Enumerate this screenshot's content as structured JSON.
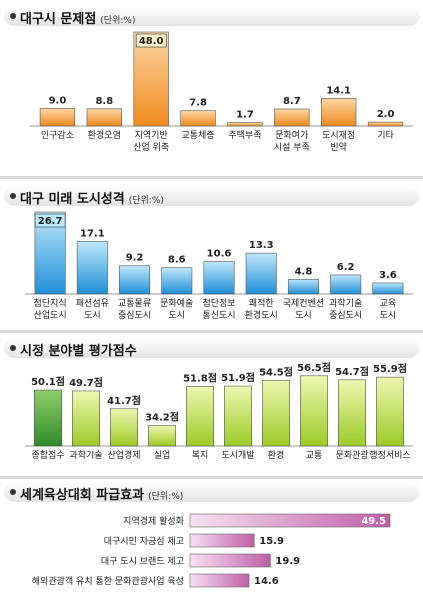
{
  "colors": {
    "orange_top": "#fdd7a6",
    "orange_bottom": "#f08a1d",
    "blue_top": "#bfe8fb",
    "blue_bottom": "#1f8ed8",
    "green_top": "#eef7b0",
    "green_bottom": "#9ccb27",
    "dgreen_top": "#8fcf6a",
    "dgreen_bottom": "#2f8a2a",
    "pink_top": "#f7e2f2",
    "pink_bottom": "#c05ea8"
  },
  "panels": [
    {
      "title": "대구시 문제점",
      "unit": "(단위:%)"
    },
    {
      "title": "대구 미래 도시성격",
      "unit": "(단위:%)"
    },
    {
      "title": "시정 분야별 평가점수",
      "unit": ""
    },
    {
      "title": "세계육상대회 파급효과",
      "unit": "(단위:%)"
    }
  ],
  "chart_data": [
    {
      "type": "bar",
      "title": "대구시 문제점",
      "unit": "(단위:%)",
      "categories": [
        [
          "인구감소"
        ],
        [
          "환경오염"
        ],
        [
          "지역기반",
          "산업 위축"
        ],
        [
          "교통체증"
        ],
        [
          "주택부족"
        ],
        [
          "문화여가",
          "시설 부족"
        ],
        [
          "도시재정",
          "빈약"
        ],
        [
          "기타"
        ]
      ],
      "values": [
        9.0,
        8.8,
        48.0,
        7.8,
        1.7,
        8.7,
        14.1,
        2.0
      ],
      "labels": [
        "9.0",
        "8.8",
        "48.0",
        "7.8",
        "1.7",
        "8.7",
        "14.1",
        "2.0"
      ],
      "highlight_index": 2,
      "color": "orange"
    },
    {
      "type": "bar",
      "title": "대구 미래 도시성격",
      "unit": "(단위:%)",
      "categories": [
        [
          "첨단지식",
          "산업도시"
        ],
        [
          "패션섬유",
          "도시"
        ],
        [
          "교통물류",
          "중심도시"
        ],
        [
          "문화예술",
          "도시"
        ],
        [
          "첨단정보",
          "통신도시"
        ],
        [
          "쾌적한",
          "환경도시"
        ],
        [
          "국제컨벤션",
          "도시"
        ],
        [
          "과학기술",
          "중심도시"
        ],
        [
          "교육",
          "도시"
        ]
      ],
      "values": [
        26.7,
        17.1,
        9.2,
        8.6,
        10.6,
        13.3,
        4.8,
        6.2,
        3.6
      ],
      "labels": [
        "26.7",
        "17.1",
        "9.2",
        "8.6",
        "10.6",
        "13.3",
        "4.8",
        "6.2",
        "3.6"
      ],
      "highlight_index": 0,
      "color": "blue"
    },
    {
      "type": "bar",
      "title": "시정 분야별 평가점수",
      "categories": [
        [
          "종합점수"
        ],
        [
          "과학기술"
        ],
        [
          "산업경제"
        ],
        [
          "실업"
        ],
        [
          "복지"
        ],
        [
          "도시개발"
        ],
        [
          "환경"
        ],
        [
          "교통"
        ],
        [
          "문화관광"
        ],
        [
          "행정서비스"
        ]
      ],
      "values": [
        50.1,
        49.7,
        41.7,
        34.2,
        51.8,
        51.9,
        54.5,
        56.5,
        54.7,
        55.9
      ],
      "labels": [
        "50.1점",
        "49.7점",
        "41.7점",
        "34.2점",
        "51.8점",
        "51.9점",
        "54.5점",
        "56.5점",
        "54.7점",
        "55.9점"
      ],
      "ylim": [
        25,
        60
      ],
      "highlight_index": 0,
      "color": "green"
    },
    {
      "type": "bar",
      "orientation": "horizontal",
      "title": "세계육상대회 파급효과",
      "unit": "(단위:%)",
      "categories": [
        "지역경제 활성화",
        "대구시민 자긍심 제고",
        "대구 도시 브랜드 제고",
        "해외관광객 유치 통한 문화관광사업 육성"
      ],
      "values": [
        49.5,
        15.9,
        19.9,
        14.6
      ],
      "labels": [
        "49.5",
        "15.9",
        "19.9",
        "14.6"
      ],
      "color": "pink"
    }
  ]
}
